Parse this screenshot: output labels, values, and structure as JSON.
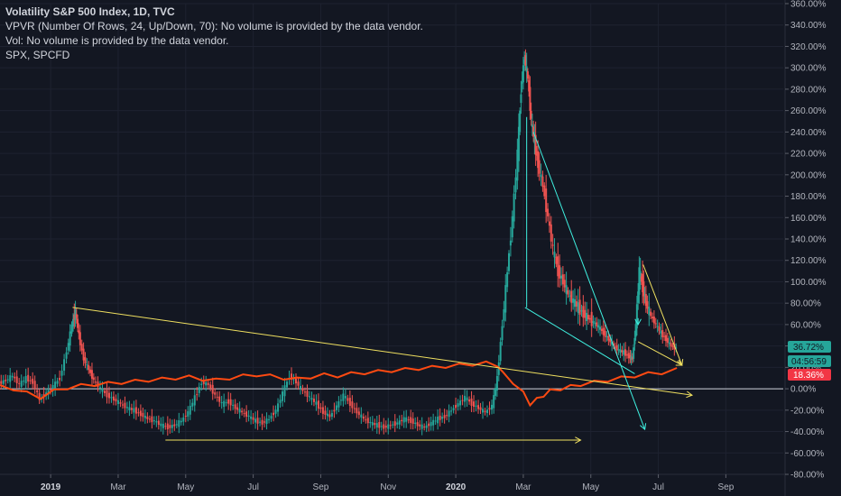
{
  "legend": {
    "title": "Volatility S&P 500 Index, 1D, TVC",
    "vpvr": "VPVR (Number Of Rows, 24, Up/Down, 70): No volume is provided by the data vendor.",
    "vol": "Vol: No volume is provided by the data vendor.",
    "compare": "SPX, SPCFD"
  },
  "colors": {
    "background": "#131722",
    "axis_text": "#b2b5be",
    "up_candle": "#26a69a",
    "down_candle": "#ef5350",
    "spx_line": "#ff4a12",
    "trend_yellow": "#f0e060",
    "trend_cyan": "#3ff0e0",
    "zero_line": "#d1d4dc",
    "badge_green": "#26a69a",
    "badge_red": "#f23645"
  },
  "chart_data": {
    "type": "line",
    "y_scale": "percent",
    "ylim": [
      -80,
      360
    ],
    "y_ticks": [
      "360.00%",
      "340.00%",
      "320.00%",
      "300.00%",
      "280.00%",
      "260.00%",
      "240.00%",
      "220.00%",
      "200.00%",
      "180.00%",
      "160.00%",
      "140.00%",
      "120.00%",
      "100.00%",
      "80.00%",
      "60.00%",
      "40.00%",
      "20.00%",
      "0.00%",
      "-20.00%",
      "-40.00%",
      "-60.00%",
      "-80.00%"
    ],
    "y_tick_values": [
      360,
      340,
      320,
      300,
      280,
      260,
      240,
      220,
      200,
      180,
      160,
      140,
      120,
      100,
      80,
      60,
      40,
      20,
      0,
      -20,
      -40,
      -60,
      -80
    ],
    "x_ticks": [
      {
        "label": "2019",
        "t": 0.3,
        "bold": true
      },
      {
        "label": "Mar",
        "t": 2.3,
        "bold": false
      },
      {
        "label": "May",
        "t": 4.3,
        "bold": false
      },
      {
        "label": "Jul",
        "t": 6.3,
        "bold": false
      },
      {
        "label": "Sep",
        "t": 8.3,
        "bold": false
      },
      {
        "label": "Nov",
        "t": 10.3,
        "bold": false
      },
      {
        "label": "2020",
        "t": 12.3,
        "bold": true
      },
      {
        "label": "Mar",
        "t": 14.3,
        "bold": false
      },
      {
        "label": "May",
        "t": 16.3,
        "bold": false
      },
      {
        "label": "Jul",
        "t": 18.3,
        "bold": false
      },
      {
        "label": "Sep",
        "t": 20.3,
        "bold": false
      }
    ],
    "xlim": [
      -1.2,
      22.0
    ],
    "series": [
      {
        "name": "Volatility S&P 500 Index",
        "style": "candles",
        "points": [
          [
            -1.2,
            5
          ],
          [
            -1.0,
            8
          ],
          [
            -0.8,
            12
          ],
          [
            -0.6,
            4
          ],
          [
            -0.4,
            10
          ],
          [
            -0.2,
            6
          ],
          [
            0.0,
            -10
          ],
          [
            0.2,
            -4
          ],
          [
            0.4,
            2
          ],
          [
            0.6,
            10
          ],
          [
            0.8,
            35
          ],
          [
            0.95,
            60
          ],
          [
            1.05,
            72
          ],
          [
            1.15,
            50
          ],
          [
            1.3,
            28
          ],
          [
            1.45,
            18
          ],
          [
            1.6,
            8
          ],
          [
            1.8,
            0
          ],
          [
            2.0,
            -6
          ],
          [
            2.2,
            -10
          ],
          [
            2.4,
            -14
          ],
          [
            2.6,
            -18
          ],
          [
            2.8,
            -20
          ],
          [
            3.0,
            -24
          ],
          [
            3.2,
            -28
          ],
          [
            3.4,
            -30
          ],
          [
            3.6,
            -34
          ],
          [
            3.8,
            -36
          ],
          [
            4.0,
            -34
          ],
          [
            4.2,
            -30
          ],
          [
            4.4,
            -22
          ],
          [
            4.6,
            -8
          ],
          [
            4.8,
            6
          ],
          [
            5.0,
            4
          ],
          [
            5.2,
            -6
          ],
          [
            5.4,
            -14
          ],
          [
            5.6,
            -12
          ],
          [
            5.8,
            -18
          ],
          [
            6.0,
            -22
          ],
          [
            6.2,
            -26
          ],
          [
            6.4,
            -30
          ],
          [
            6.6,
            -32
          ],
          [
            6.8,
            -28
          ],
          [
            7.0,
            -20
          ],
          [
            7.2,
            -4
          ],
          [
            7.4,
            12
          ],
          [
            7.6,
            6
          ],
          [
            7.8,
            -2
          ],
          [
            8.0,
            -8
          ],
          [
            8.2,
            -14
          ],
          [
            8.4,
            -22
          ],
          [
            8.6,
            -26
          ],
          [
            8.8,
            -16
          ],
          [
            9.0,
            -6
          ],
          [
            9.2,
            -14
          ],
          [
            9.4,
            -22
          ],
          [
            9.6,
            -28
          ],
          [
            9.8,
            -32
          ],
          [
            10.0,
            -34
          ],
          [
            10.2,
            -36
          ],
          [
            10.4,
            -34
          ],
          [
            10.6,
            -32
          ],
          [
            10.8,
            -28
          ],
          [
            11.0,
            -30
          ],
          [
            11.2,
            -34
          ],
          [
            11.4,
            -36
          ],
          [
            11.6,
            -32
          ],
          [
            11.8,
            -28
          ],
          [
            12.0,
            -26
          ],
          [
            12.2,
            -20
          ],
          [
            12.4,
            -14
          ],
          [
            12.6,
            -8
          ],
          [
            12.8,
            -14
          ],
          [
            13.0,
            -18
          ],
          [
            13.2,
            -22
          ],
          [
            13.4,
            -16
          ],
          [
            13.55,
            10
          ],
          [
            13.7,
            60
          ],
          [
            13.85,
            110
          ],
          [
            14.0,
            160
          ],
          [
            14.15,
            220
          ],
          [
            14.25,
            280
          ],
          [
            14.35,
            310
          ],
          [
            14.45,
            290
          ],
          [
            14.55,
            250
          ],
          [
            14.65,
            230
          ],
          [
            14.75,
            210
          ],
          [
            14.9,
            190
          ],
          [
            15.05,
            160
          ],
          [
            15.2,
            130
          ],
          [
            15.35,
            110
          ],
          [
            15.5,
            100
          ],
          [
            15.65,
            88
          ],
          [
            15.8,
            82
          ],
          [
            15.95,
            76
          ],
          [
            16.1,
            70
          ],
          [
            16.25,
            66
          ],
          [
            16.4,
            62
          ],
          [
            16.55,
            58
          ],
          [
            16.7,
            52
          ],
          [
            16.85,
            46
          ],
          [
            17.0,
            40
          ],
          [
            17.15,
            36
          ],
          [
            17.3,
            34
          ],
          [
            17.45,
            30
          ],
          [
            17.55,
            28
          ],
          [
            17.65,
            60
          ],
          [
            17.75,
            110
          ],
          [
            17.85,
            95
          ],
          [
            17.95,
            80
          ],
          [
            18.1,
            68
          ],
          [
            18.25,
            60
          ],
          [
            18.4,
            52
          ],
          [
            18.55,
            46
          ],
          [
            18.7,
            40
          ],
          [
            18.85,
            38
          ]
        ]
      },
      {
        "name": "SPX, SPCFD",
        "style": "line",
        "points": [
          [
            -1.2,
            2
          ],
          [
            -0.8,
            0
          ],
          [
            -0.4,
            -4
          ],
          [
            0.0,
            -8
          ],
          [
            0.4,
            -2
          ],
          [
            0.8,
            1
          ],
          [
            1.2,
            3
          ],
          [
            1.6,
            4
          ],
          [
            2.0,
            5
          ],
          [
            2.4,
            6
          ],
          [
            2.8,
            7
          ],
          [
            3.2,
            8
          ],
          [
            3.6,
            9
          ],
          [
            4.0,
            10
          ],
          [
            4.4,
            11
          ],
          [
            4.8,
            9
          ],
          [
            5.2,
            8
          ],
          [
            5.6,
            10
          ],
          [
            6.0,
            12
          ],
          [
            6.4,
            13
          ],
          [
            6.8,
            12
          ],
          [
            7.2,
            10
          ],
          [
            7.6,
            9
          ],
          [
            8.0,
            11
          ],
          [
            8.4,
            13
          ],
          [
            8.8,
            12
          ],
          [
            9.2,
            14
          ],
          [
            9.6,
            15
          ],
          [
            10.0,
            16
          ],
          [
            10.4,
            17
          ],
          [
            10.8,
            18
          ],
          [
            11.2,
            19
          ],
          [
            11.6,
            20
          ],
          [
            12.0,
            21
          ],
          [
            12.4,
            22
          ],
          [
            12.8,
            23
          ],
          [
            13.2,
            24
          ],
          [
            13.55,
            22
          ],
          [
            13.7,
            14
          ],
          [
            14.0,
            6
          ],
          [
            14.3,
            -4
          ],
          [
            14.5,
            -14
          ],
          [
            14.7,
            -10
          ],
          [
            14.9,
            -6
          ],
          [
            15.1,
            -2
          ],
          [
            15.4,
            0
          ],
          [
            15.7,
            2
          ],
          [
            16.0,
            4
          ],
          [
            16.4,
            6
          ],
          [
            16.8,
            8
          ],
          [
            17.2,
            10
          ],
          [
            17.6,
            12
          ],
          [
            18.0,
            14
          ],
          [
            18.4,
            15
          ],
          [
            18.85,
            18
          ]
        ]
      }
    ],
    "trendlines": [
      {
        "color": "yellow",
        "from": [
          0.95,
          76
        ],
        "to": [
          19.3,
          -6
        ],
        "arrow": true
      },
      {
        "color": "yellow",
        "from": [
          3.7,
          -48
        ],
        "to": [
          16.0,
          -48
        ],
        "arrow": true
      },
      {
        "color": "cyan",
        "from": [
          14.6,
          240
        ],
        "to": [
          17.9,
          -38
        ],
        "arrow": true
      },
      {
        "color": "cyan",
        "from": [
          14.35,
          76
        ],
        "to": [
          17.6,
          14
        ],
        "arrow": false
      },
      {
        "color": "cyan",
        "from": [
          14.4,
          76
        ],
        "to": [
          14.4,
          254
        ],
        "arrow": false
      },
      {
        "color": "yellow",
        "from": [
          17.85,
          116
        ],
        "to": [
          19.0,
          22
        ],
        "arrow": true
      },
      {
        "color": "yellow",
        "from": [
          17.7,
          44
        ],
        "to": [
          19.0,
          22
        ],
        "arrow": true
      },
      {
        "color": "cyan",
        "from": [
          17.7,
          66
        ],
        "to": [
          17.7,
          60
        ],
        "arrow": true
      }
    ]
  },
  "badges": {
    "vix_value": "36.72%",
    "countdown": "04:56:59",
    "spx_value": "18.36%"
  }
}
